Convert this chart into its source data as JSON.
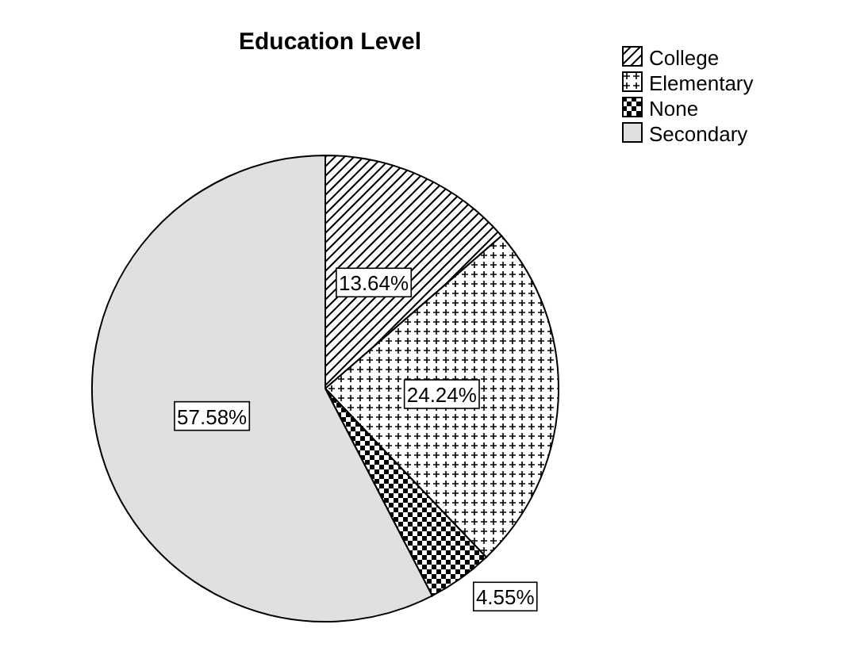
{
  "chart_data": {
    "type": "pie",
    "title": "Education Level",
    "categories": [
      "College",
      "Elementary",
      "None",
      "Secondary"
    ],
    "values": [
      13.64,
      24.24,
      4.55,
      57.58
    ],
    "colors": [
      "#000000",
      "#000000",
      "#000000",
      "#e0e0e0"
    ],
    "value_labels": [
      "13.64%",
      "24.24%",
      "4.55%",
      "57.58%"
    ],
    "legend": "top right"
  }
}
